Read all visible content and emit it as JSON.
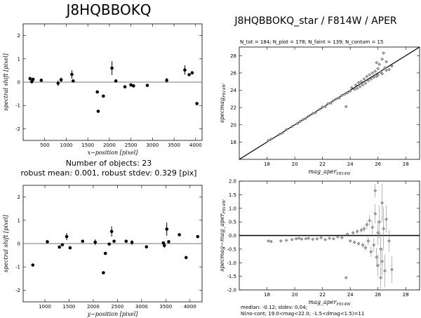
{
  "header": {
    "title": "J8HQBBOKQ",
    "right_title": "J8HQBBOKQ_star / F814W / APER",
    "counts": "N_tot = 184; N_plot = 178; N_faint = 139; N_contam = 15",
    "n_objects": "Number of objects: 23",
    "robust": "robust mean: 0.001, robust stdev: 0.329 [pix]",
    "footer_line1": "median: -0.12; stdev: 0.04;",
    "footer_line2": "N(no-cont; 19.0<mag<22.0; -1.5<dmag<1.5)=11"
  },
  "chart_data": [
    {
      "id": "shift_vs_x",
      "type": "scatter",
      "xlabel": "x−position [pixel]",
      "ylabel": "spectral shift [pixel]",
      "xlim": [
        0,
        4150
      ],
      "ylim": [
        -2.5,
        2.5
      ],
      "xticks": [
        500,
        1000,
        1500,
        2000,
        2500,
        3000,
        3500,
        4000
      ],
      "yticks": [
        -2,
        -1,
        0,
        1,
        2
      ],
      "reference_line": 0,
      "points": [
        {
          "x": 160,
          "y": 0.15,
          "err": 0.08
        },
        {
          "x": 200,
          "y": 0.02,
          "err": 0.08
        },
        {
          "x": 230,
          "y": 0.12,
          "err": 0.08
        },
        {
          "x": 420,
          "y": 0.08,
          "err": 0.06
        },
        {
          "x": 810,
          "y": -0.05,
          "err": 0.12
        },
        {
          "x": 880,
          "y": 0.1,
          "err": 0.1
        },
        {
          "x": 1130,
          "y": 0.33,
          "err": 0.18
        },
        {
          "x": 1160,
          "y": 0.05,
          "err": 0.06
        },
        {
          "x": 1720,
          "y": -0.42,
          "err": 0.06
        },
        {
          "x": 1740,
          "y": -1.25,
          "err": 0.06
        },
        {
          "x": 1860,
          "y": -0.6,
          "err": 0.06
        },
        {
          "x": 2060,
          "y": 0.6,
          "err": 0.3
        },
        {
          "x": 2150,
          "y": 0.05,
          "err": 0.06
        },
        {
          "x": 2360,
          "y": -0.2,
          "err": 0.06
        },
        {
          "x": 2500,
          "y": -0.12,
          "err": 0.06
        },
        {
          "x": 2560,
          "y": -0.16,
          "err": 0.06
        },
        {
          "x": 2880,
          "y": -0.14,
          "err": 0.06
        },
        {
          "x": 3330,
          "y": 0.08,
          "err": 0.1
        },
        {
          "x": 3750,
          "y": 0.52,
          "err": 0.2
        },
        {
          "x": 3850,
          "y": 0.32,
          "err": 0.06
        },
        {
          "x": 3920,
          "y": 0.4,
          "err": 0.06
        },
        {
          "x": 4030,
          "y": -0.92,
          "err": 0.06
        }
      ]
    },
    {
      "id": "shift_vs_y",
      "type": "scatter",
      "xlabel": "y−position [pixel]",
      "ylabel": "spectral shift [pixel]",
      "xlim": [
        550,
        4250
      ],
      "ylim": [
        -2.5,
        2.5
      ],
      "xticks": [
        1000,
        1500,
        2000,
        2500,
        3000,
        3500,
        4000
      ],
      "yticks": [
        -2,
        -1,
        0,
        1,
        2
      ],
      "reference_line": 0,
      "points": [
        {
          "x": 750,
          "y": -0.92,
          "err": 0.06
        },
        {
          "x": 1050,
          "y": 0.08,
          "err": 0.06
        },
        {
          "x": 1300,
          "y": -0.15,
          "err": 0.06
        },
        {
          "x": 1360,
          "y": -0.05,
          "err": 0.06
        },
        {
          "x": 1450,
          "y": 0.3,
          "err": 0.15
        },
        {
          "x": 1520,
          "y": -0.18,
          "err": 0.06
        },
        {
          "x": 1780,
          "y": 0.1,
          "err": 0.06
        },
        {
          "x": 2040,
          "y": 0.06,
          "err": 0.12
        },
        {
          "x": 2210,
          "y": -1.25,
          "err": 0.06
        },
        {
          "x": 2250,
          "y": -0.42,
          "err": 0.06
        },
        {
          "x": 2330,
          "y": -0.02,
          "err": 0.06
        },
        {
          "x": 2380,
          "y": 0.52,
          "err": 0.22
        },
        {
          "x": 2430,
          "y": 0.1,
          "err": 0.06
        },
        {
          "x": 2680,
          "y": 0.1,
          "err": 0.06
        },
        {
          "x": 2800,
          "y": 0.05,
          "err": 0.1
        },
        {
          "x": 3100,
          "y": -0.14,
          "err": 0.06
        },
        {
          "x": 3450,
          "y": 0.03,
          "err": 0.06
        },
        {
          "x": 3470,
          "y": -0.08,
          "err": 0.1
        },
        {
          "x": 3520,
          "y": 0.62,
          "err": 0.28
        },
        {
          "x": 3560,
          "y": 0.08,
          "err": 0.06
        },
        {
          "x": 3780,
          "y": 0.38,
          "err": 0.06
        },
        {
          "x": 3920,
          "y": -0.6,
          "err": 0.06
        },
        {
          "x": 4160,
          "y": 0.3,
          "err": 0.06
        }
      ]
    },
    {
      "id": "specmag_vs_mag",
      "type": "scatter",
      "xlabel": "mag_aper",
      "xlabel_sub": "F814W",
      "ylabel": "specmag",
      "ylabel_sub": "F814W",
      "xlim": [
        16.0,
        29.0
      ],
      "ylim": [
        16.0,
        29.0
      ],
      "xticks": [
        18,
        20,
        22,
        24,
        26,
        28
      ],
      "yticks": [
        18,
        20,
        22,
        24,
        26,
        28
      ],
      "reference_line": "y = x",
      "points": [
        {
          "x": 18.1,
          "y": 18.2
        },
        {
          "x": 18.3,
          "y": 18.35
        },
        {
          "x": 18.9,
          "y": 18.9
        },
        {
          "x": 19.1,
          "y": 19.05
        },
        {
          "x": 19.4,
          "y": 19.45
        },
        {
          "x": 19.8,
          "y": 19.8
        },
        {
          "x": 20.2,
          "y": 20.15
        },
        {
          "x": 20.4,
          "y": 20.4
        },
        {
          "x": 20.6,
          "y": 20.6
        },
        {
          "x": 20.8,
          "y": 20.75
        },
        {
          "x": 21.0,
          "y": 21.0
        },
        {
          "x": 21.3,
          "y": 21.3
        },
        {
          "x": 21.5,
          "y": 21.4
        },
        {
          "x": 21.8,
          "y": 21.8
        },
        {
          "x": 22.0,
          "y": 22.05
        },
        {
          "x": 22.2,
          "y": 22.1
        },
        {
          "x": 22.4,
          "y": 22.45
        },
        {
          "x": 22.6,
          "y": 22.5
        },
        {
          "x": 22.8,
          "y": 22.8
        },
        {
          "x": 23.0,
          "y": 23.0
        },
        {
          "x": 23.2,
          "y": 23.1
        },
        {
          "x": 23.4,
          "y": 23.4
        },
        {
          "x": 23.6,
          "y": 23.55
        },
        {
          "x": 23.8,
          "y": 23.7
        },
        {
          "x": 23.7,
          "y": 22.1
        },
        {
          "x": 24.0,
          "y": 23.9
        },
        {
          "x": 24.1,
          "y": 24.3
        },
        {
          "x": 24.3,
          "y": 24.1
        },
        {
          "x": 24.4,
          "y": 24.6
        },
        {
          "x": 24.5,
          "y": 24.2
        },
        {
          "x": 24.6,
          "y": 24.9
        },
        {
          "x": 24.7,
          "y": 24.4
        },
        {
          "x": 24.8,
          "y": 25.0
        },
        {
          "x": 24.9,
          "y": 24.6
        },
        {
          "x": 25.0,
          "y": 25.3
        },
        {
          "x": 25.1,
          "y": 24.8
        },
        {
          "x": 25.2,
          "y": 25.6
        },
        {
          "x": 25.3,
          "y": 25.1
        },
        {
          "x": 25.4,
          "y": 25.8
        },
        {
          "x": 25.5,
          "y": 25.3
        },
        {
          "x": 25.6,
          "y": 26.0
        },
        {
          "x": 25.7,
          "y": 25.5
        },
        {
          "x": 25.8,
          "y": 26.2
        },
        {
          "x": 25.9,
          "y": 25.6
        },
        {
          "x": 26.0,
          "y": 26.5
        },
        {
          "x": 26.0,
          "y": 25.8
        },
        {
          "x": 26.1,
          "y": 27.0
        },
        {
          "x": 26.2,
          "y": 26.1
        },
        {
          "x": 26.3,
          "y": 27.6
        },
        {
          "x": 26.3,
          "y": 25.9
        },
        {
          "x": 26.5,
          "y": 26.6
        },
        {
          "x": 26.6,
          "y": 26.3
        },
        {
          "x": 26.8,
          "y": 26.4
        },
        {
          "x": 27.0,
          "y": 26.8
        },
        {
          "x": 26.4,
          "y": 28.3
        },
        {
          "x": 25.9,
          "y": 27.2
        },
        {
          "x": 26.6,
          "y": 27.3
        }
      ]
    },
    {
      "id": "dmag_vs_mag",
      "type": "scatter",
      "xlabel": "mag_aper",
      "xlabel_sub": "F814W",
      "ylabel": "specmag−mag_aper",
      "ylabel_sub": "F814W",
      "xlim": [
        16.0,
        29.0
      ],
      "ylim": [
        -2.0,
        2.0
      ],
      "xticks": [
        18,
        20,
        22,
        24,
        26,
        28
      ],
      "yticks": [
        -2.0,
        -1.5,
        -1.0,
        -0.5,
        0.0,
        0.5,
        1.0,
        1.5,
        2.0
      ],
      "reference_line": 0,
      "points": [
        {
          "x": 18.1,
          "y": -0.2,
          "err": 0.03
        },
        {
          "x": 18.3,
          "y": -0.22,
          "err": 0.03
        },
        {
          "x": 19.0,
          "y": -0.2,
          "err": 0.03
        },
        {
          "x": 19.4,
          "y": -0.18,
          "err": 0.03
        },
        {
          "x": 19.8,
          "y": -0.15,
          "err": 0.03
        },
        {
          "x": 20.1,
          "y": -0.12,
          "err": 0.03
        },
        {
          "x": 20.3,
          "y": -0.1,
          "err": 0.03
        },
        {
          "x": 20.5,
          "y": -0.13,
          "err": 0.03
        },
        {
          "x": 20.8,
          "y": -0.12,
          "err": 0.03
        },
        {
          "x": 21.0,
          "y": -0.1,
          "err": 0.03
        },
        {
          "x": 21.3,
          "y": -0.14,
          "err": 0.03
        },
        {
          "x": 21.6,
          "y": -0.12,
          "err": 0.03
        },
        {
          "x": 21.9,
          "y": -0.08,
          "err": 0.03
        },
        {
          "x": 22.2,
          "y": -0.15,
          "err": 0.04
        },
        {
          "x": 22.5,
          "y": -0.1,
          "err": 0.04
        },
        {
          "x": 22.8,
          "y": -0.12,
          "err": 0.04
        },
        {
          "x": 23.1,
          "y": -0.05,
          "err": 0.05
        },
        {
          "x": 23.4,
          "y": -0.08,
          "err": 0.05
        },
        {
          "x": 23.7,
          "y": -1.55,
          "err": 0.05
        },
        {
          "x": 23.8,
          "y": 0.05,
          "err": 0.06
        },
        {
          "x": 24.0,
          "y": -0.2,
          "err": 0.06
        },
        {
          "x": 24.2,
          "y": 0.1,
          "err": 0.07
        },
        {
          "x": 24.3,
          "y": -0.25,
          "err": 0.07
        },
        {
          "x": 24.5,
          "y": 0.15,
          "err": 0.08
        },
        {
          "x": 24.6,
          "y": -0.3,
          "err": 0.08
        },
        {
          "x": 24.8,
          "y": 0.2,
          "err": 0.1
        },
        {
          "x": 24.9,
          "y": -0.35,
          "err": 0.1
        },
        {
          "x": 25.0,
          "y": 0.25,
          "err": 0.12
        },
        {
          "x": 25.1,
          "y": -0.45,
          "err": 0.12
        },
        {
          "x": 25.2,
          "y": 0.4,
          "err": 0.15
        },
        {
          "x": 25.3,
          "y": -0.2,
          "err": 0.15
        },
        {
          "x": 25.4,
          "y": 0.55,
          "err": 0.2
        },
        {
          "x": 25.5,
          "y": -0.6,
          "err": 0.2
        },
        {
          "x": 25.6,
          "y": 0.3,
          "err": 0.25
        },
        {
          "x": 25.7,
          "y": -0.35,
          "err": 0.25
        },
        {
          "x": 25.8,
          "y": 0.8,
          "err": 0.35
        },
        {
          "x": 25.9,
          "y": -0.8,
          "err": 0.35
        },
        {
          "x": 26.0,
          "y": 0.1,
          "err": 0.45
        },
        {
          "x": 26.0,
          "y": -1.1,
          "err": 0.4
        },
        {
          "x": 26.1,
          "y": 0.5,
          "err": 0.6
        },
        {
          "x": 26.2,
          "y": -0.5,
          "err": 0.6
        },
        {
          "x": 26.3,
          "y": 1.2,
          "err": 0.7
        },
        {
          "x": 26.3,
          "y": -0.95,
          "err": 0.5
        },
        {
          "x": 26.4,
          "y": 0.25,
          "err": 0.8
        },
        {
          "x": 26.5,
          "y": -1.3,
          "err": 0.6
        },
        {
          "x": 26.6,
          "y": 0.6,
          "err": 0.5
        },
        {
          "x": 26.8,
          "y": -0.2,
          "err": 0.4
        },
        {
          "x": 27.0,
          "y": -1.25,
          "err": 0.5
        },
        {
          "x": 25.8,
          "y": 1.65,
          "err": 0.25
        },
        {
          "x": 26.2,
          "y": -1.55,
          "err": 0.4
        }
      ]
    }
  ]
}
